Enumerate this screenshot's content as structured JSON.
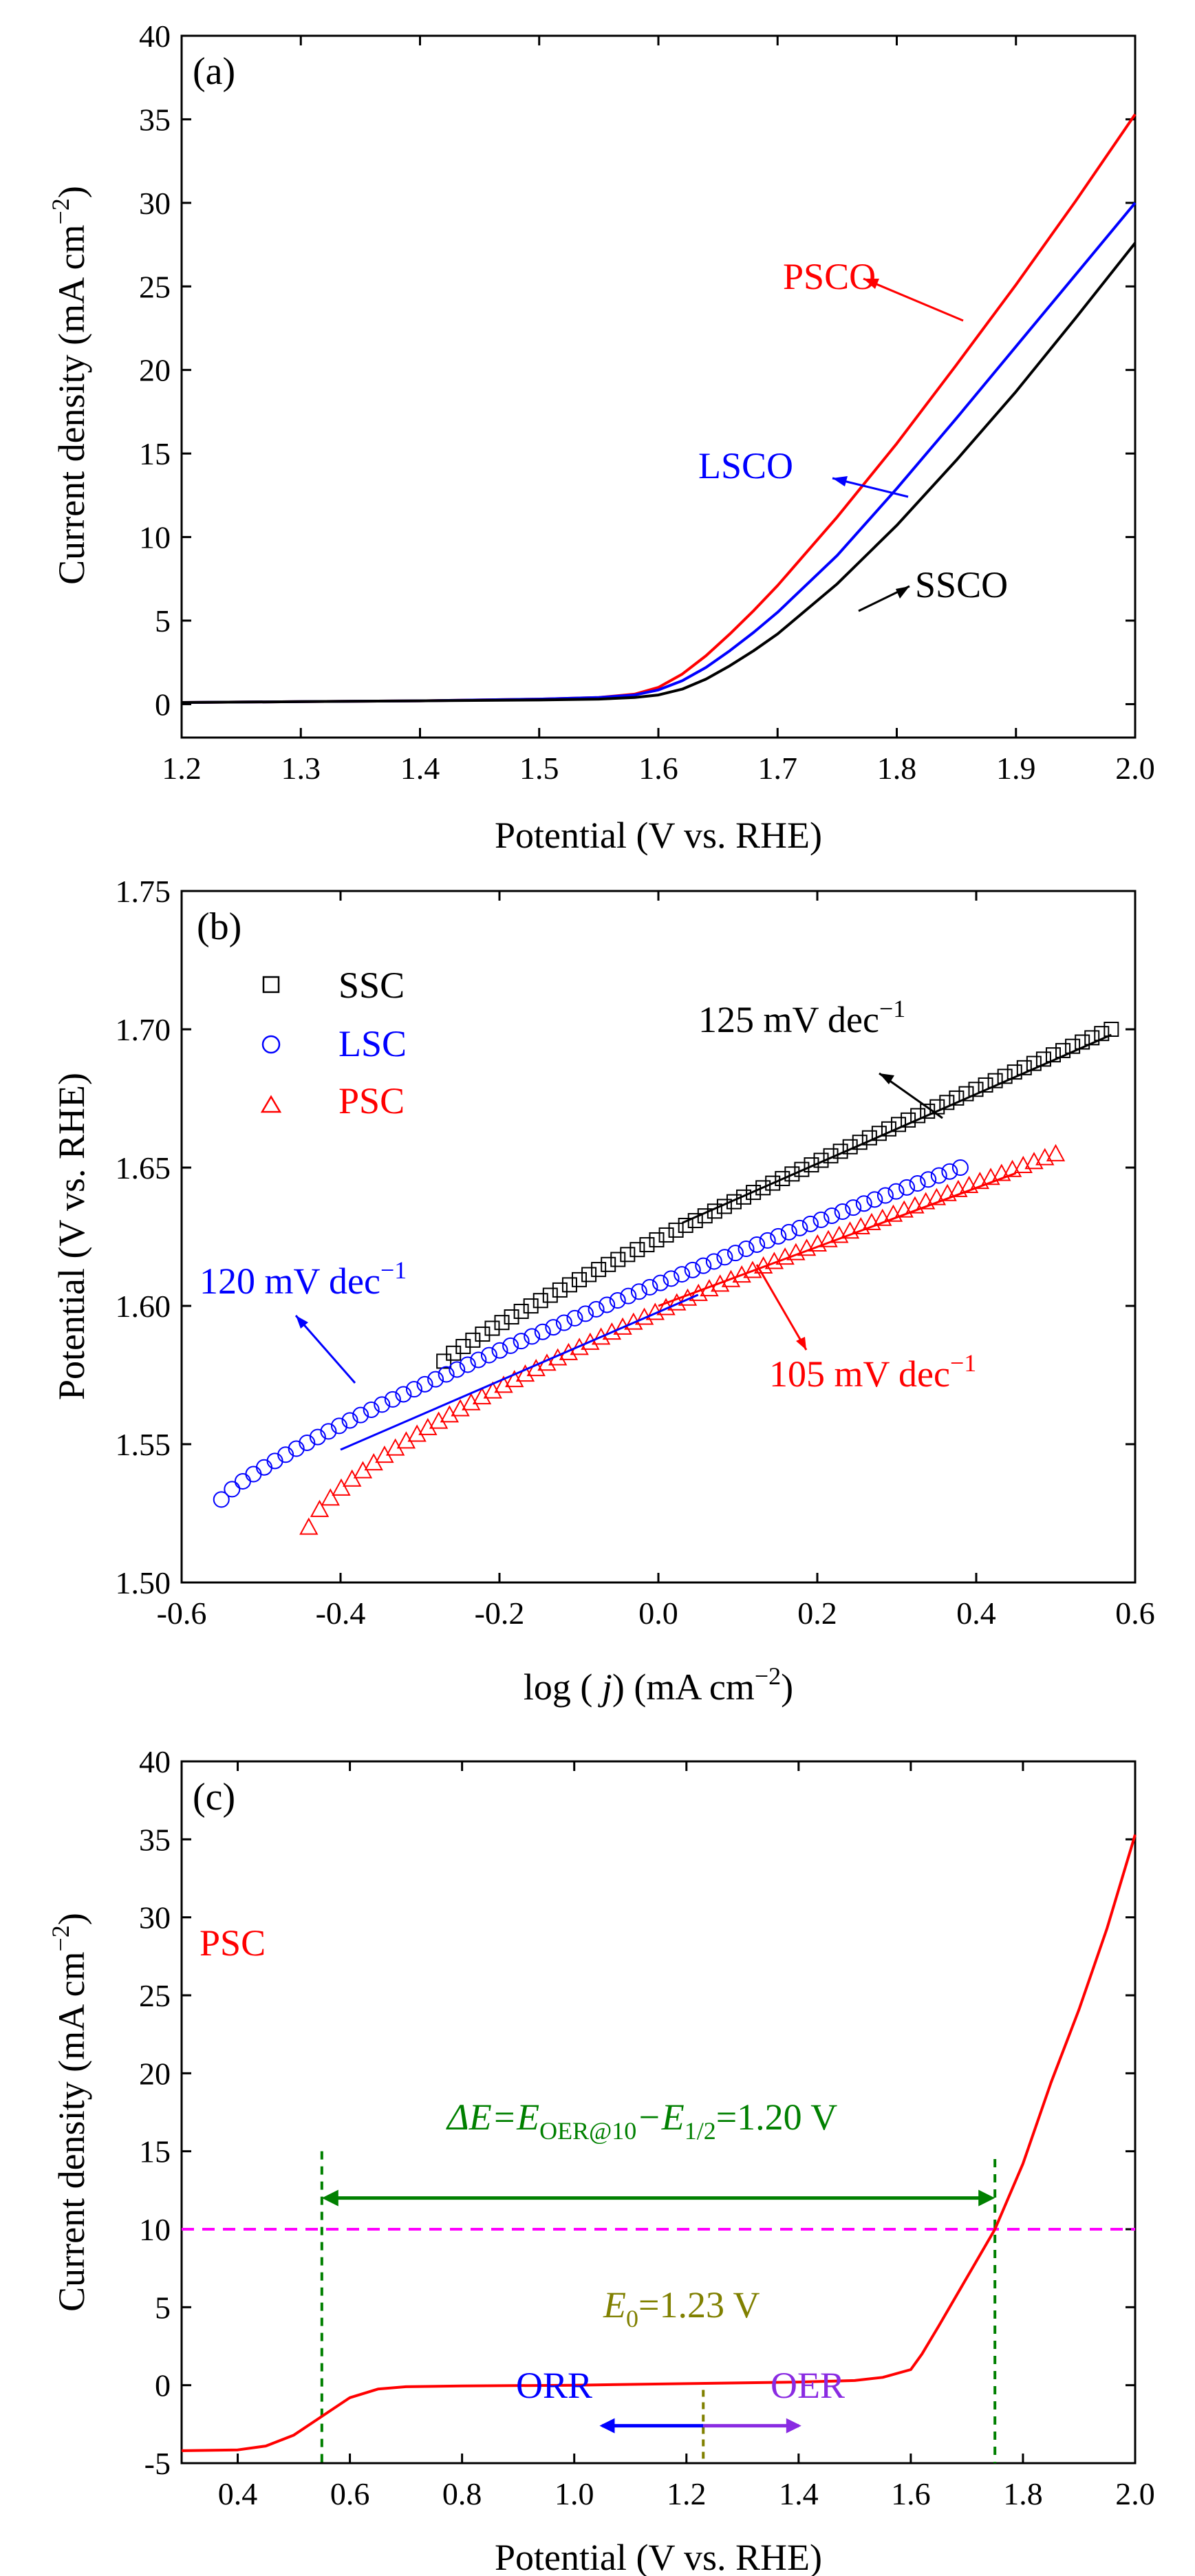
{
  "chart_data": [
    {
      "panel": "(a)",
      "type": "line",
      "xlabel": "Potential (V vs. RHE)",
      "ylabel": "Current density  (mA cm",
      "ylabel_sup": "−2",
      "xlim": [
        1.2,
        2.0
      ],
      "ylim": [
        -2,
        40
      ],
      "xticks": [
        "1.2",
        "1.3",
        "1.4",
        "1.5",
        "1.6",
        "1.7",
        "1.8",
        "1.9",
        "2.0"
      ],
      "yticks": [
        "0",
        "5",
        "10",
        "15",
        "20",
        "25",
        "30",
        "35",
        "40"
      ],
      "series": [
        {
          "name": "PSCO",
          "color": "#ff0000",
          "x": [
            1.2,
            1.3,
            1.4,
            1.5,
            1.55,
            1.58,
            1.6,
            1.62,
            1.64,
            1.66,
            1.68,
            1.7,
            1.75,
            1.8,
            1.85,
            1.9,
            1.95,
            2.0
          ],
          "y": [
            0.1,
            0.15,
            0.2,
            0.3,
            0.4,
            0.6,
            1.0,
            1.8,
            2.9,
            4.2,
            5.6,
            7.1,
            11.2,
            15.6,
            20.3,
            25.1,
            30.1,
            35.3
          ]
        },
        {
          "name": "LSCO",
          "color": "#0000ff",
          "x": [
            1.2,
            1.3,
            1.4,
            1.5,
            1.55,
            1.58,
            1.6,
            1.62,
            1.64,
            1.66,
            1.68,
            1.7,
            1.75,
            1.8,
            1.85,
            1.9,
            1.95,
            2.0
          ],
          "y": [
            0.1,
            0.15,
            0.2,
            0.3,
            0.4,
            0.55,
            0.85,
            1.4,
            2.2,
            3.2,
            4.3,
            5.5,
            8.9,
            12.9,
            17.1,
            21.4,
            25.7,
            30.0
          ]
        },
        {
          "name": "SSCO",
          "color": "#000000",
          "x": [
            1.2,
            1.3,
            1.4,
            1.5,
            1.55,
            1.58,
            1.6,
            1.62,
            1.64,
            1.66,
            1.68,
            1.7,
            1.75,
            1.8,
            1.85,
            1.9,
            1.95,
            2.0
          ],
          "y": [
            0.1,
            0.15,
            0.2,
            0.25,
            0.3,
            0.4,
            0.55,
            0.9,
            1.5,
            2.3,
            3.2,
            4.2,
            7.2,
            10.7,
            14.6,
            18.7,
            23.1,
            27.6
          ]
        }
      ],
      "annotations": [
        {
          "text": "PSCO",
          "color": "#ff0000"
        },
        {
          "text": "LSCO",
          "color": "#0000ff"
        },
        {
          "text": "SSCO",
          "color": "#000000"
        }
      ]
    },
    {
      "panel": "(b)",
      "type": "scatter",
      "xlabel_pre": "log ( ",
      "xlabel_var": "j",
      "xlabel_post": ") (mA cm",
      "xlabel_sup": "−2",
      "xlabel_end": ")",
      "ylabel": "Potential (V vs. RHE)",
      "xlim": [
        -0.6,
        0.6
      ],
      "ylim": [
        1.5,
        1.75
      ],
      "xticks": [
        "-0.6",
        "-0.4",
        "-0.2",
        "0.0",
        "0.2",
        "0.4",
        "0.6"
      ],
      "yticks": [
        "1.50",
        "1.55",
        "1.60",
        "1.65",
        "1.70",
        "1.75"
      ],
      "legend_position": "top-left",
      "series": [
        {
          "name": "SSC",
          "marker": "square",
          "color": "#000000",
          "x_range": [
            -0.27,
            0.57
          ],
          "y_range": [
            1.58,
            1.7
          ]
        },
        {
          "name": "LSC",
          "marker": "circle",
          "color": "#0000ff",
          "x_range": [
            -0.55,
            0.38
          ],
          "y_range": [
            1.53,
            1.65
          ]
        },
        {
          "name": "PSC",
          "marker": "triangle",
          "color": "#ff0000",
          "x_range": [
            -0.44,
            0.5
          ],
          "y_range": [
            1.52,
            1.655
          ]
        }
      ],
      "annotations": [
        {
          "text": "125 mV dec",
          "sup": "−1",
          "color": "#000000"
        },
        {
          "text": "120 mV dec",
          "sup": "−1",
          "color": "#0000ff"
        },
        {
          "text": "105 mV dec",
          "sup": "−1",
          "color": "#ff0000"
        }
      ]
    },
    {
      "panel": "(c)",
      "type": "line",
      "xlabel": "Potential  (V vs. RHE)",
      "ylabel": "Current density (mA cm",
      "ylabel_sup": "−2",
      "xlim": [
        0.3,
        2.0
      ],
      "ylim": [
        -5,
        40
      ],
      "xticks": [
        "0.4",
        "0.6",
        "0.8",
        "1.0",
        "1.2",
        "1.4",
        "1.6",
        "1.8",
        "2.0"
      ],
      "yticks": [
        "-5",
        "0",
        "5",
        "10",
        "15",
        "20",
        "25",
        "30",
        "35",
        "40"
      ],
      "series": [
        {
          "name": "PSC",
          "color": "#ff0000",
          "x": [
            0.3,
            0.4,
            0.45,
            0.5,
            0.55,
            0.6,
            0.65,
            0.7,
            0.8,
            1.0,
            1.2,
            1.4,
            1.5,
            1.55,
            1.6,
            1.62,
            1.65,
            1.7,
            1.75,
            1.8,
            1.85,
            1.9,
            1.95,
            2.0
          ],
          "y": [
            -4.2,
            -4.15,
            -3.9,
            -3.2,
            -2.0,
            -0.8,
            -0.25,
            -0.1,
            -0.05,
            0.0,
            0.1,
            0.2,
            0.3,
            0.5,
            1.0,
            2.0,
            3.8,
            6.9,
            10.0,
            14.2,
            19.4,
            24.1,
            29.3,
            35.3
          ]
        }
      ],
      "reference_line_y": 10,
      "reference_line_color": "#ff00ff",
      "annotation_color": "#008000",
      "e0_color": "#808000",
      "text": {
        "series_label": "PSC",
        "delta_e": "ΔE=E",
        "delta_e_sub1": "OER@10",
        "delta_e_mid": "−E",
        "delta_e_sub2": "1/2",
        "delta_e_end": "=1.20 V",
        "e0_pre": "E",
        "e0_sub": "0",
        "e0_end": "=1.23 V",
        "orr": "ORR",
        "oer": "OER"
      }
    }
  ]
}
